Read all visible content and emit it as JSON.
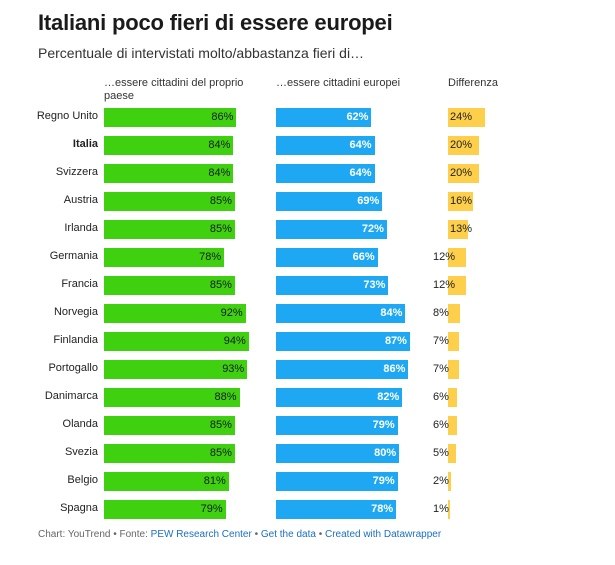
{
  "title": "Italiani poco fieri di essere europei",
  "subtitle": "Percentuale di intervistati molto/abbastanza fieri di…",
  "columns": {
    "native": "…essere cittadini del proprio paese",
    "eu": "…essere cittadini europei",
    "diff": "Differenza"
  },
  "footer": {
    "prefix": "Chart: YouTrend • Fonte: ",
    "source": "PEW Research Center",
    "sep1": " • ",
    "get_data": "Get the data",
    "sep2": " • ",
    "created": "Created with Datawrapper"
  },
  "colors": {
    "native": "#3fd10f",
    "eu": "#1ea8f3",
    "diff": "#fdcf4a"
  },
  "chart_data": {
    "type": "bar",
    "categories": [
      "Regno Unito",
      "Italia",
      "Svizzera",
      "Austria",
      "Irlanda",
      "Germania",
      "Francia",
      "Norvegia",
      "Finlandia",
      "Portogallo",
      "Danimarca",
      "Olanda",
      "Svezia",
      "Belgio",
      "Spagna"
    ],
    "highlight": "Italia",
    "series": [
      {
        "name": "…essere cittadini del proprio paese",
        "values": [
          86,
          84,
          84,
          85,
          85,
          78,
          85,
          92,
          94,
          93,
          88,
          85,
          85,
          81,
          79
        ]
      },
      {
        "name": "…essere cittadini europei",
        "values": [
          62,
          64,
          64,
          69,
          72,
          66,
          73,
          84,
          87,
          86,
          82,
          79,
          80,
          79,
          78
        ]
      },
      {
        "name": "Differenza",
        "values": [
          24,
          20,
          20,
          16,
          13,
          12,
          12,
          8,
          7,
          7,
          6,
          6,
          5,
          2,
          1
        ]
      }
    ],
    "unit": "%"
  }
}
